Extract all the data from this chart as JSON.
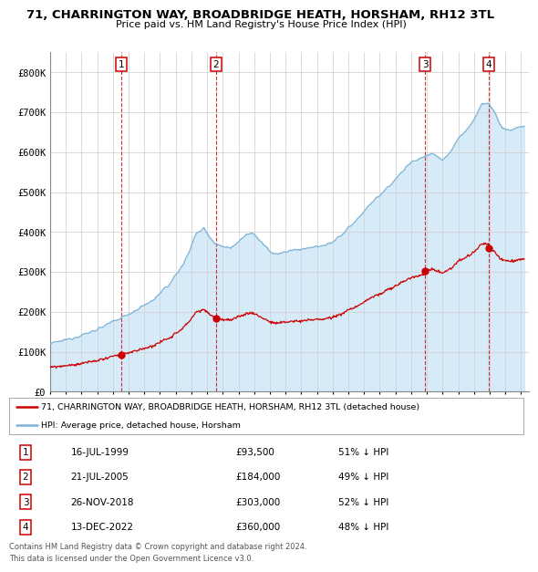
{
  "title": "71, CHARRINGTON WAY, BROADBRIDGE HEATH, HORSHAM, RH12 3TL",
  "subtitle": "Price paid vs. HM Land Registry's House Price Index (HPI)",
  "xlim": [
    1995.0,
    2025.5
  ],
  "ylim": [
    0,
    850000
  ],
  "yticks": [
    0,
    100000,
    200000,
    300000,
    400000,
    500000,
    600000,
    700000,
    800000
  ],
  "ytick_labels": [
    "£0",
    "£100K",
    "£200K",
    "£300K",
    "£400K",
    "£500K",
    "£600K",
    "£700K",
    "£800K"
  ],
  "hpi_color": "#7ab4d8",
  "price_color": "#cc0000",
  "hpi_fill_color": "#d6eaf8",
  "background_color": "#ffffff",
  "grid_color": "#cccccc",
  "transactions": [
    {
      "num": 1,
      "date_label": "16-JUL-1999",
      "date_year": 1999.54,
      "price": 93500,
      "hpi_pct": "51% ↓ HPI"
    },
    {
      "num": 2,
      "date_label": "21-JUL-2005",
      "date_year": 2005.55,
      "price": 184000,
      "hpi_pct": "49% ↓ HPI"
    },
    {
      "num": 3,
      "date_label": "26-NOV-2018",
      "date_year": 2018.9,
      "price": 303000,
      "hpi_pct": "52% ↓ HPI"
    },
    {
      "num": 4,
      "date_label": "13-DEC-2022",
      "date_year": 2022.95,
      "price": 360000,
      "hpi_pct": "48% ↓ HPI"
    }
  ],
  "legend_line1": "71, CHARRINGTON WAY, BROADBRIDGE HEATH, HORSHAM, RH12 3TL (detached house)",
  "legend_line2": "HPI: Average price, detached house, Horsham",
  "footer1": "Contains HM Land Registry data © Crown copyright and database right 2024.",
  "footer2": "This data is licensed under the Open Government Licence v3.0."
}
